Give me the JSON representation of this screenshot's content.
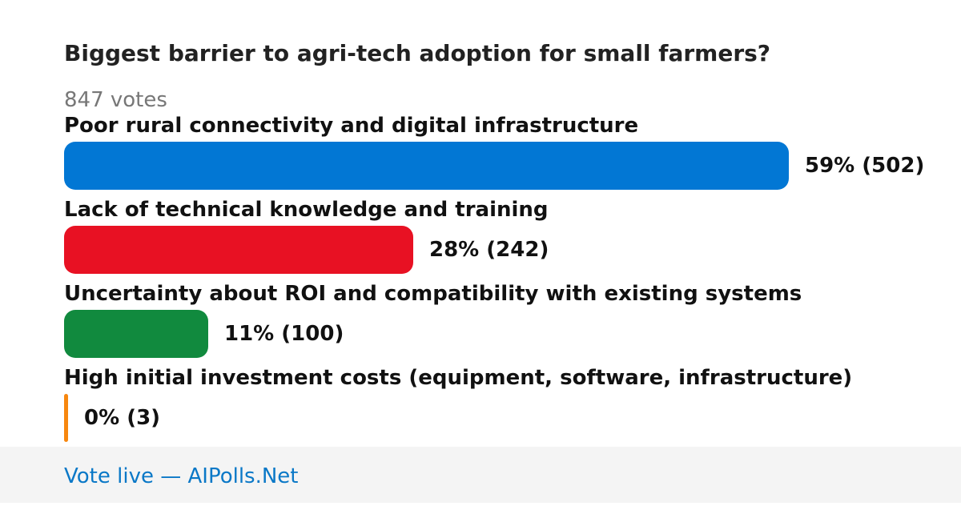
{
  "poll": {
    "question": "Biggest barrier to agri-tech adoption for small farmers?",
    "votes_label": "847 votes"
  },
  "footer": {
    "link_text": "Vote live — AIPolls.Net"
  },
  "chart_data": {
    "type": "bar",
    "orientation": "horizontal",
    "title": "Biggest barrier to agri-tech adoption for small farmers?",
    "total_votes": 847,
    "categories": [
      "Poor rural connectivity and digital infrastructure",
      "Lack of technical knowledge and training",
      "Uncertainty about ROI and compatibility with existing systems",
      "High initial investment costs (equipment, software, infrastructure)"
    ],
    "values": [
      502,
      242,
      100,
      3
    ],
    "percents": [
      59,
      28,
      11,
      0
    ],
    "value_labels": [
      "59% (502)",
      "28% (242)",
      "11% (100)",
      "0% (3)"
    ],
    "colors": [
      "#0277d4",
      "#e81123",
      "#118a3e",
      "#f7870f"
    ]
  }
}
